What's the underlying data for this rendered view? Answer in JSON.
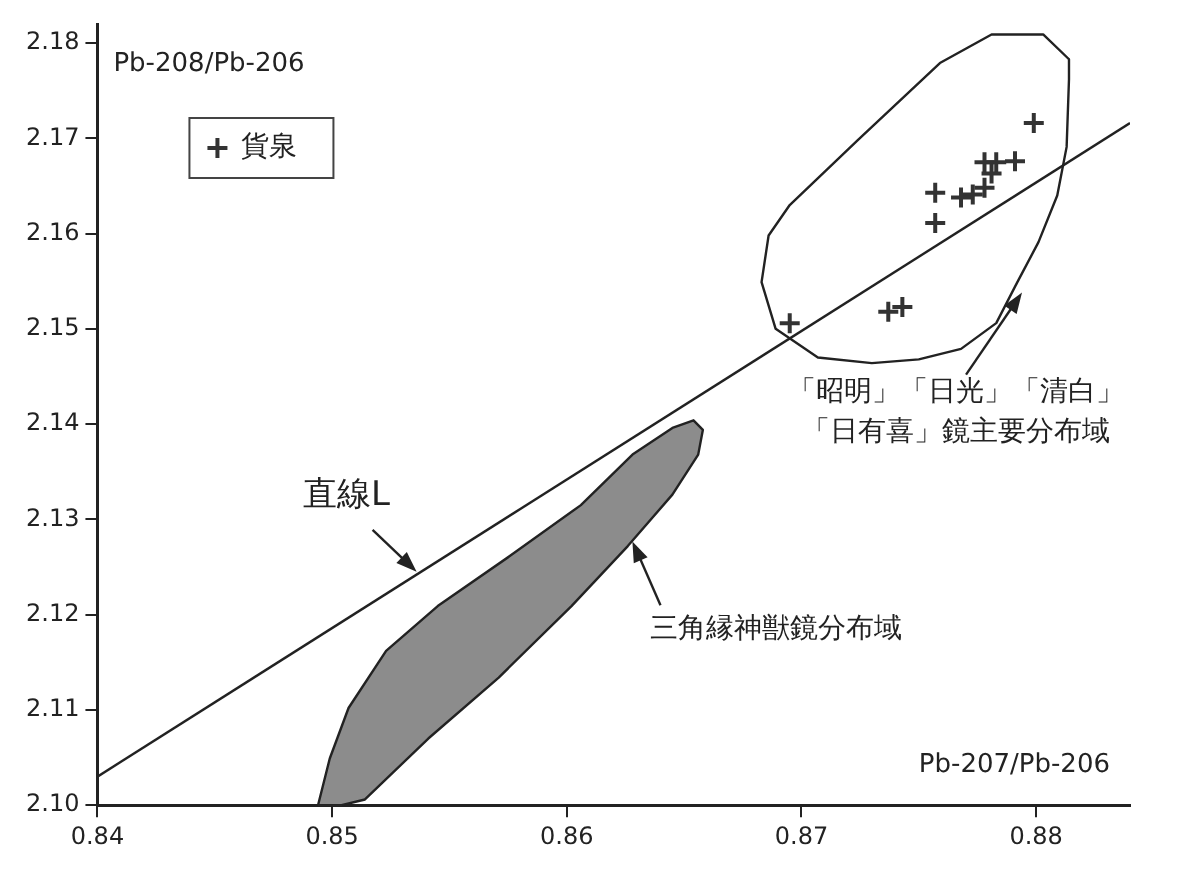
{
  "chart_data": {
    "type": "scatter",
    "xlabel": "Pb-207/Pb-206",
    "ylabel": "Pb-208/Pb-206",
    "xlim": [
      0.84,
      0.884
    ],
    "xticks": [
      0.84,
      0.85,
      0.86,
      0.87,
      0.88
    ],
    "ylim": [
      2.1,
      2.182
    ],
    "yticks": [
      {
        "value": 2.1,
        "label": "2.10"
      },
      2.11,
      2.12,
      2.13,
      2.14,
      2.15,
      2.16,
      2.17,
      2.18
    ],
    "grid": false,
    "legend": "top left",
    "marker": "cross",
    "series": [
      {
        "type": "area",
        "color": "#8c8c8c",
        "marker": "none",
        "x": [
          0.8494,
          0.8499,
          0.8507,
          0.8523,
          0.8545,
          0.8576,
          0.8606,
          0.8628,
          0.8645,
          0.8654,
          0.8658,
          0.8656,
          0.8645,
          0.8626,
          0.8602,
          0.8571,
          0.8541,
          0.8514,
          0.8504,
          0.8494
        ],
        "values": [
          2.1,
          2.1049,
          2.1102,
          2.1162,
          2.1209,
          2.1262,
          2.1315,
          2.1368,
          2.1396,
          2.1404,
          2.1394,
          2.1368,
          2.1326,
          2.1272,
          2.1209,
          2.1134,
          2.107,
          2.1006,
          2.1,
          2.1
        ]
      },
      {
        "type": "area",
        "color": "#ffffff",
        "marker": "none",
        "x": [
          0.8814,
          0.8813,
          0.8809,
          0.8801,
          0.8792,
          0.8783,
          0.8768,
          0.875,
          0.873,
          0.8707,
          0.8689,
          0.8683,
          0.8686,
          0.8695,
          0.8724,
          0.8759,
          0.8781,
          0.8803,
          0.8814,
          0.8814
        ],
        "values": [
          2.1762,
          2.1691,
          2.164,
          2.1591,
          2.1549,
          2.1506,
          2.1479,
          2.1468,
          2.1464,
          2.147,
          2.15,
          2.1549,
          2.1598,
          2.163,
          2.1698,
          2.1779,
          2.1809,
          2.1809,
          2.1783,
          2.1762
        ]
      },
      {
        "type": "line",
        "color": "#222222",
        "marker": "none",
        "x": [
          0.84,
          0.884
        ],
        "values": [
          2.103,
          2.1716
        ]
      },
      {
        "name": "貨泉",
        "color": "#333333",
        "x": [
          0.8799,
          0.8778,
          0.8783,
          0.8791,
          0.8781,
          0.8778,
          0.8773,
          0.8768,
          0.8757,
          0.8757,
          0.8743,
          0.8737,
          0.8695
        ],
        "values": [
          2.1716,
          2.1675,
          2.1675,
          2.1676,
          2.1663,
          2.1648,
          2.1641,
          2.1638,
          2.1643,
          2.1611,
          2.1523,
          2.1518,
          2.1506
        ]
      }
    ],
    "annotations": [
      {
        "text": "直線L",
        "x": 0.8536,
        "y": 2.1245
      },
      {
        "text": "三角縁神獣鏡分布域",
        "x": 0.8628,
        "y": 2.1277
      },
      {
        "text": "「昭明」「日光」「清白」「日有喜」鏡主要分布域",
        "x": 0.8794,
        "y": 2.1538
      }
    ]
  }
}
